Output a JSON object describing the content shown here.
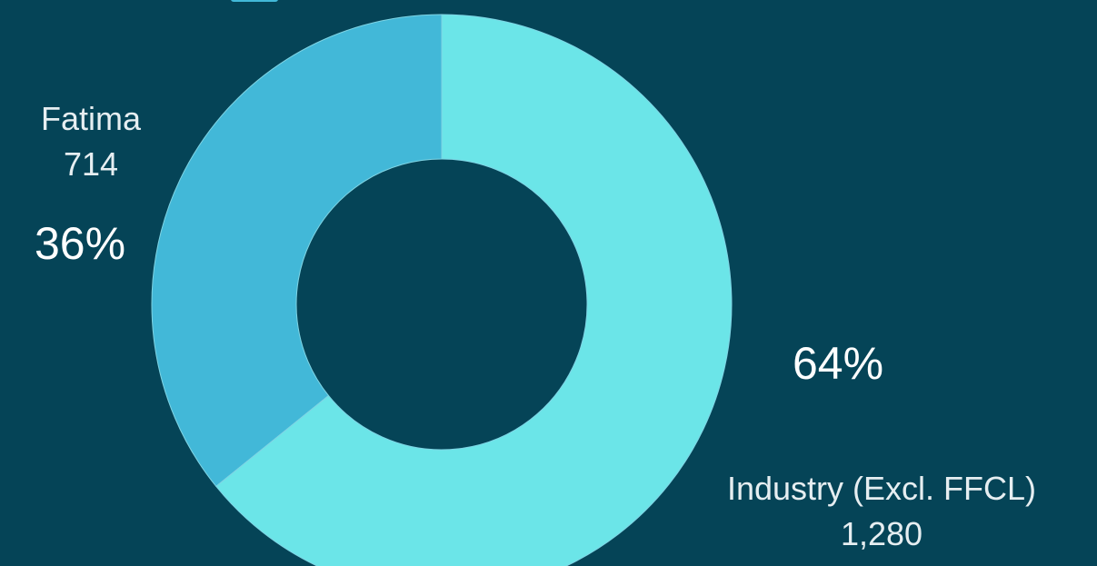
{
  "chart_data": {
    "type": "pie",
    "variant": "donut",
    "legend_placement": "top",
    "slices": [
      {
        "name": "Fatima",
        "value": 714,
        "value_label": "714",
        "percent": 36,
        "percent_label": "36%",
        "color": "#42b8d8"
      },
      {
        "name": "Industry (Excl. FFCL)",
        "value": 1280,
        "value_label": "1,280",
        "percent": 64,
        "percent_label": "64%",
        "color": "#6be5e8"
      }
    ]
  },
  "colors": {
    "background": "#054457",
    "slice_border": "#7fd4e4",
    "label_text": "#e6eef1"
  }
}
